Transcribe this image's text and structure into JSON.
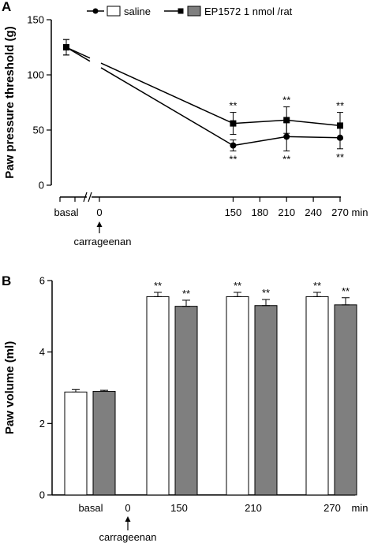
{
  "panel_a": {
    "letter": "A"
  },
  "panel_b": {
    "letter": "B"
  },
  "legend": {
    "saline": "saline",
    "ep": "EP1572  1 nmol /rat",
    "saline_color": "#ffffff",
    "ep_color": "#7f7f7f"
  },
  "chart_data": [
    {
      "type": "line",
      "ylabel": "Paw pressure threshold (g)",
      "ylim": [
        0,
        150
      ],
      "yticks": [
        "0",
        "50",
        "100",
        "150"
      ],
      "x_tick_labels": [
        "basal",
        "0",
        "150",
        "180",
        "210",
        "240",
        "270",
        "min"
      ],
      "annotation": "carrageenan",
      "x": [
        "basal",
        "150",
        "210",
        "270"
      ],
      "series": [
        {
          "name": "saline",
          "marker": "circle",
          "values": [
            125,
            36,
            44,
            43
          ],
          "errors": [
            7,
            5,
            13,
            10
          ],
          "stars": [
            "",
            "**",
            "**",
            "**"
          ]
        },
        {
          "name": "EP1572  1 nmol /rat",
          "marker": "square",
          "values": [
            125,
            56,
            59,
            54
          ],
          "errors": [
            7,
            10,
            12,
            12
          ],
          "stars": [
            "",
            "**",
            "**",
            "**"
          ]
        }
      ]
    },
    {
      "type": "bar",
      "ylabel": "Paw volume (ml)",
      "ylim": [
        0,
        6
      ],
      "yticks": [
        "0",
        "2",
        "4",
        "6"
      ],
      "categories": [
        "basal",
        "150",
        "210",
        "270"
      ],
      "x_tick_labels": [
        "basal",
        "0",
        "150",
        "210",
        "270",
        "min"
      ],
      "annotation": "carrageenan",
      "series": [
        {
          "name": "saline",
          "values": [
            2.88,
            5.55,
            5.55,
            5.55
          ],
          "errors": [
            0.07,
            0.12,
            0.12,
            0.12
          ],
          "stars": [
            "",
            "**",
            "**",
            "**"
          ]
        },
        {
          "name": "EP1572  1 nmol /rat",
          "values": [
            2.9,
            5.28,
            5.3,
            5.32
          ],
          "errors": [
            0.03,
            0.17,
            0.17,
            0.2
          ],
          "stars": [
            "",
            "**",
            "**",
            "**"
          ]
        }
      ]
    }
  ]
}
